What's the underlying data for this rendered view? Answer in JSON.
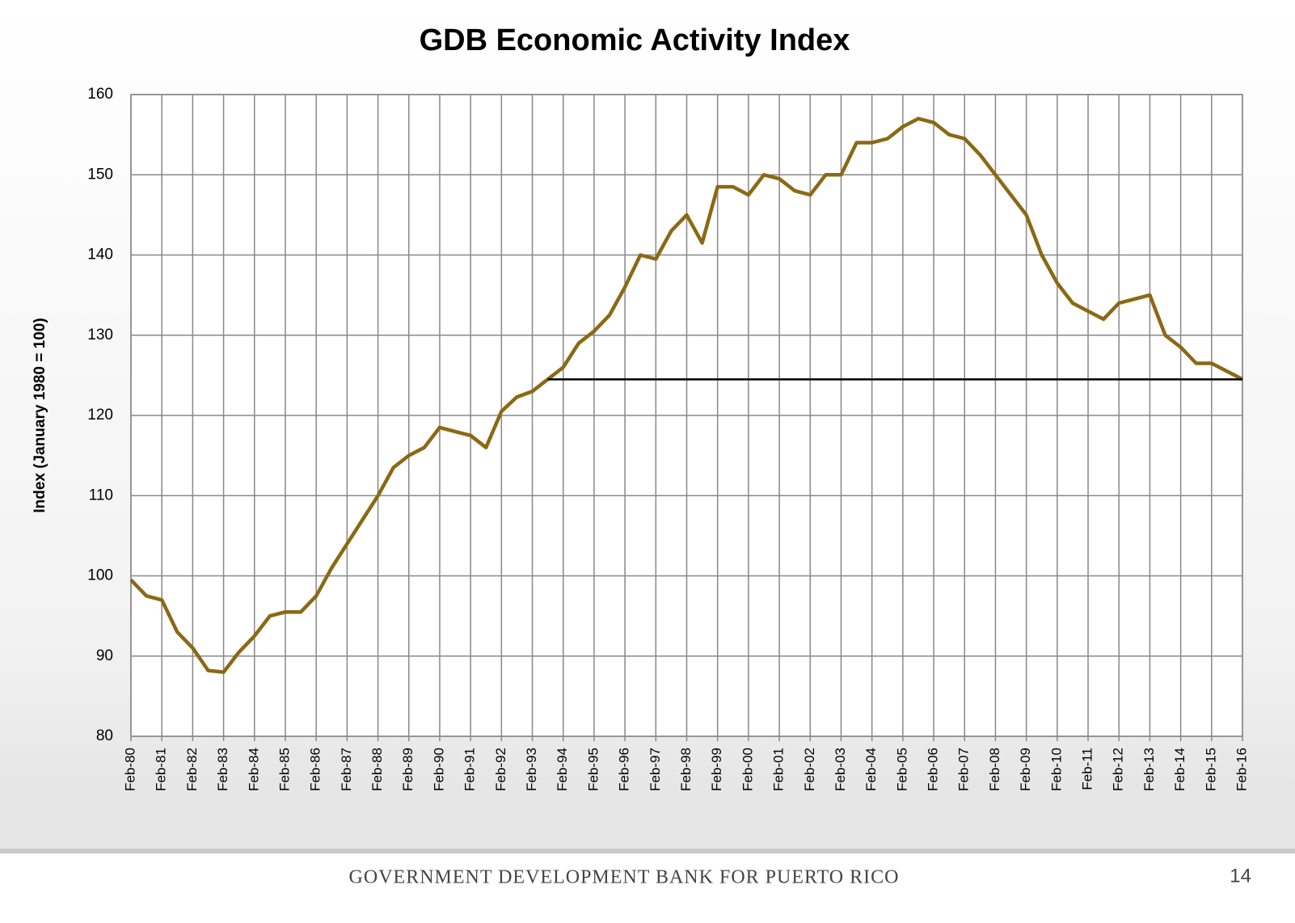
{
  "chart_data": {
    "type": "line",
    "title": "GDB Economic Activity Index",
    "y_label": "Index (January 1980 = 100)",
    "categories": [
      "Feb-80",
      null,
      "Feb-81",
      null,
      "Feb-82",
      null,
      "Feb-83",
      null,
      "Feb-84",
      null,
      "Feb-85",
      null,
      "Feb-86",
      null,
      "Feb-87",
      null,
      "Feb-88",
      null,
      "Feb-89",
      null,
      "Feb-90",
      null,
      "Feb-91",
      null,
      "Feb-92",
      null,
      "Feb-93",
      null,
      "Feb-94",
      null,
      "Feb-95",
      null,
      "Feb-96",
      null,
      "Feb-97",
      null,
      "Feb-98",
      null,
      "Feb-99",
      null,
      "Feb-00",
      null,
      "Feb-01",
      null,
      "Feb-02",
      null,
      "Feb-03",
      null,
      "Feb-04",
      null,
      "Feb-05",
      null,
      "Feb-06",
      null,
      "Feb-07",
      null,
      "Feb-08",
      null,
      "Feb-09",
      null,
      "Feb-10",
      null,
      "Feb-11",
      null,
      "Feb-12",
      null,
      "Feb-13",
      null,
      "Feb-14",
      null,
      "Feb-15",
      null,
      "Feb-16"
    ],
    "series": [
      {
        "color": "#8b6914",
        "values": [
          99.5,
          97.5,
          97,
          93,
          91,
          88.2,
          88,
          90.5,
          92.5,
          95,
          95.5,
          95.5,
          97.5,
          101,
          104,
          107,
          110,
          113.5,
          115,
          116,
          118.5,
          118,
          117.5,
          116,
          120.5,
          122.3,
          123,
          124.5,
          126,
          129,
          130.5,
          132.5,
          136,
          140,
          139.5,
          143,
          145,
          141.5,
          148.5,
          148.5,
          147.5,
          150,
          149.5,
          148,
          147.5,
          150,
          150,
          154,
          154,
          154.5,
          156,
          157,
          156.5,
          155,
          154.5,
          152.5,
          150,
          147.5,
          145,
          140,
          136.5,
          134,
          133,
          132,
          134,
          134.5,
          135,
          130,
          128.5,
          126.5,
          126.5,
          125.5,
          124.5
        ]
      }
    ],
    "reference_line": {
      "value": 124.5,
      "color": "#000000"
    },
    "ylim": [
      80,
      160
    ],
    "yticks": [
      80,
      90,
      100,
      110,
      120,
      130,
      140,
      150,
      160
    ],
    "grid": true
  },
  "footer": {
    "text": "GOVERNMENT DEVELOPMENT BANK FOR PUERTO RICO",
    "page": "14"
  }
}
